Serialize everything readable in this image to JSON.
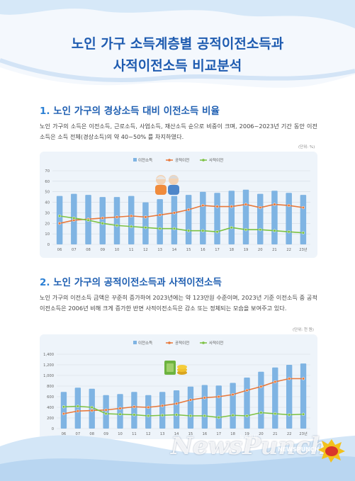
{
  "header": {
    "title_line1": "노인 가구 소득계층별 공적이전소득과",
    "title_line2": "사적이전소득 비교분석"
  },
  "section1": {
    "num": "1.",
    "heading": "노인 가구의 경상소득 대비 이전소득 비율",
    "paragraph": "노인 가구의 소득은 이전소득, 근로소득, 사업소득, 재산소득 순으로 비중이 크며, 2006~2023년 기간 동안 이전소득은 소득 전체(경상소득)의 약 40~50% 를 차지하였다.",
    "unit": "(단위: %)"
  },
  "section2": {
    "num": "2.",
    "heading": "노인 가구의 공적이전소득과 사적이전소득",
    "paragraph": "노인 가구의 이전소득 금액은 꾸준히 증가하여 2023년에는 약 123만원 수준이며, 2023년 기준 이전소득 중 공적이전소득은 2006년 비해 크게 증가한 반면 사적이전소득은 감소 또는 정체되는 모습을 보여주고 있다.",
    "unit": "(단위: 천 원)"
  },
  "watermark": {
    "text": "NewsPunch",
    "small": "NEWSPUNCH",
    "small2": "뉴스펀치"
  },
  "colors": {
    "bar": "#7fb4e3",
    "public": "#e8783a",
    "private": "#7cc242",
    "title": "#1e5bb0"
  },
  "chart_data": [
    {
      "type": "bar",
      "categories": [
        "06",
        "07",
        "08",
        "09",
        "10",
        "11",
        "12",
        "13",
        "14",
        "15",
        "16",
        "17",
        "18",
        "19",
        "20",
        "21",
        "22",
        "23년"
      ],
      "legend": [
        "이전소득",
        "공적이전",
        "사적이전"
      ],
      "series": [
        {
          "name": "이전소득",
          "kind": "bar",
          "values": [
            46,
            48,
            47,
            45,
            45,
            46,
            40,
            43,
            46,
            47,
            50,
            49,
            51,
            52,
            48,
            51,
            49,
            47
          ]
        },
        {
          "name": "공적이전",
          "kind": "line",
          "values": [
            20,
            23,
            24,
            25,
            26,
            27,
            26,
            28,
            30,
            33,
            37,
            36,
            36,
            38,
            35,
            38,
            37,
            35
          ]
        },
        {
          "name": "사적이전",
          "kind": "line",
          "values": [
            27,
            25,
            23,
            20,
            18,
            17,
            16,
            15,
            15,
            13,
            13,
            12,
            16,
            14,
            14,
            13,
            12,
            11
          ]
        }
      ],
      "yticks": [
        0,
        10,
        20,
        30,
        40,
        50,
        60,
        70
      ],
      "ylim": [
        0,
        70
      ],
      "unit": "(단위: %)"
    },
    {
      "type": "bar",
      "categories": [
        "06",
        "07",
        "08",
        "09",
        "10",
        "11",
        "12",
        "13",
        "14",
        "15",
        "16",
        "17",
        "18",
        "19",
        "20",
        "21",
        "22",
        "23년"
      ],
      "legend": [
        "이전소득",
        "공적이전",
        "사적이전"
      ],
      "series": [
        {
          "name": "이전소득",
          "kind": "bar",
          "values": [
            690,
            770,
            750,
            630,
            650,
            690,
            630,
            690,
            720,
            790,
            820,
            810,
            860,
            960,
            1070,
            1150,
            1200,
            1225
          ]
        },
        {
          "name": "공적이전",
          "kind": "line",
          "values": [
            280,
            330,
            340,
            350,
            380,
            410,
            400,
            430,
            470,
            540,
            580,
            600,
            640,
            720,
            790,
            880,
            940,
            940
          ]
        },
        {
          "name": "사적이전",
          "kind": "line",
          "values": [
            410,
            420,
            400,
            280,
            270,
            260,
            240,
            250,
            260,
            240,
            240,
            210,
            250,
            240,
            300,
            280,
            260,
            270
          ]
        }
      ],
      "yticks": [
        0,
        200,
        400,
        600,
        800,
        1000,
        1200,
        1400
      ],
      "ylim": [
        0,
        1400
      ],
      "unit": "(단위: 천 원)"
    }
  ]
}
